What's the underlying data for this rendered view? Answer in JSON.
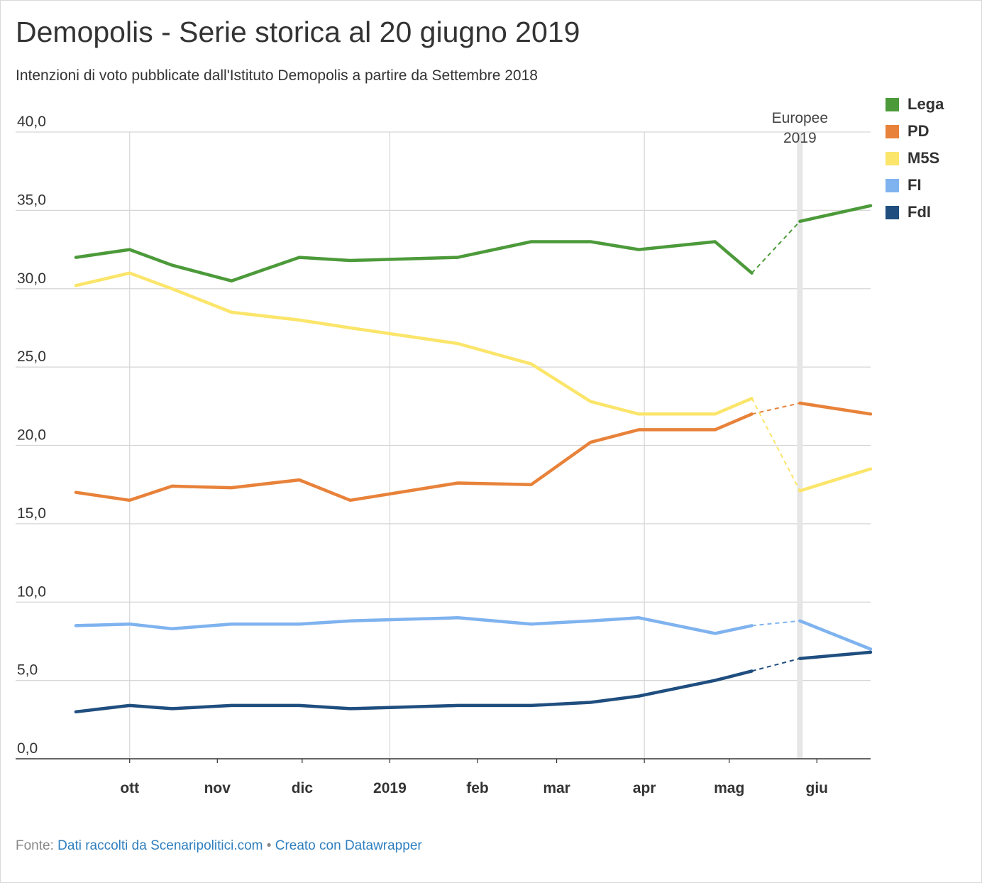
{
  "header": {
    "title": "Demopolis - Serie storica al 20 giugno 2019",
    "subtitle": "Intenzioni di voto pubblicate dall'Istituto Demopolis a partire da Settembre 2018"
  },
  "footer": {
    "source_prefix": "Fonte:",
    "source_link": "Dati raccolti da Scenaripolitici.com",
    "separator": "•",
    "made_with": "Creato con Datawrapper"
  },
  "chart_data": {
    "type": "line",
    "title": "Demopolis - Serie storica al 20 giugno 2019",
    "subtitle": "Intenzioni di voto pubblicate dall'Istituto Demopolis a partire da Settembre 2018",
    "xlabel": "",
    "ylabel": "",
    "ylim": [
      0,
      40
    ],
    "y_ticks": [
      "0,0",
      "5,0",
      "10,0",
      "15,0",
      "20,0",
      "25,0",
      "30,0",
      "35,0",
      "40,0"
    ],
    "y_tick_values": [
      0,
      5,
      10,
      15,
      20,
      25,
      30,
      35,
      40
    ],
    "x_range": [
      "2018-09-12",
      "2019-06-20"
    ],
    "x_ticks": [
      {
        "label": "ott",
        "date": "2018-10-01"
      },
      {
        "label": "nov",
        "date": "2018-11-01"
      },
      {
        "label": "dic",
        "date": "2018-12-01"
      },
      {
        "label": "2019",
        "date": "2019-01-01"
      },
      {
        "label": "feb",
        "date": "2019-02-01"
      },
      {
        "label": "mar",
        "date": "2019-03-01"
      },
      {
        "label": "apr",
        "date": "2019-04-01"
      },
      {
        "label": "mag",
        "date": "2019-05-01"
      },
      {
        "label": "giu",
        "date": "2019-06-01"
      }
    ],
    "grid": true,
    "legend_position": "right",
    "annotation": {
      "label_line1": "Europee",
      "label_line2": "2019",
      "date": "2019-05-26"
    },
    "x": [
      "2018-09-12",
      "2018-10-01",
      "2018-10-16",
      "2018-11-06",
      "2018-11-30",
      "2018-12-18",
      "2019-01-25",
      "2019-02-20",
      "2019-03-13",
      "2019-03-30",
      "2019-04-26",
      "2019-05-09",
      "2019-05-26",
      "2019-06-20"
    ],
    "series": [
      {
        "name": "Lega",
        "color": "#4c9a3a",
        "values": [
          32.0,
          32.5,
          31.5,
          30.5,
          32.0,
          31.8,
          32.0,
          33.0,
          33.0,
          32.5,
          33.0,
          31.0,
          34.3,
          35.3
        ]
      },
      {
        "name": "PD",
        "color": "#e8823a",
        "values": [
          17.0,
          16.5,
          17.4,
          17.3,
          17.8,
          16.5,
          17.6,
          17.5,
          20.2,
          21.0,
          21.0,
          22.0,
          22.7,
          22.0
        ]
      },
      {
        "name": "M5S",
        "color": "#fbe56a",
        "values": [
          30.2,
          31.0,
          30.0,
          28.5,
          28.0,
          27.5,
          26.5,
          25.2,
          22.8,
          22.0,
          22.0,
          23.0,
          17.1,
          18.5
        ]
      },
      {
        "name": "FI",
        "color": "#7fb3ef",
        "values": [
          8.5,
          8.6,
          8.3,
          8.6,
          8.6,
          8.8,
          9.0,
          8.6,
          8.8,
          9.0,
          8.0,
          8.5,
          8.8,
          7.0
        ]
      },
      {
        "name": "FdI",
        "color": "#1f4e7f",
        "values": [
          3.0,
          3.4,
          3.2,
          3.4,
          3.4,
          3.2,
          3.4,
          3.4,
          3.6,
          4.0,
          5.0,
          5.6,
          6.4,
          6.8
        ]
      }
    ],
    "dashed_segment": {
      "from": "2019-05-09",
      "to": "2019-05-26"
    }
  }
}
